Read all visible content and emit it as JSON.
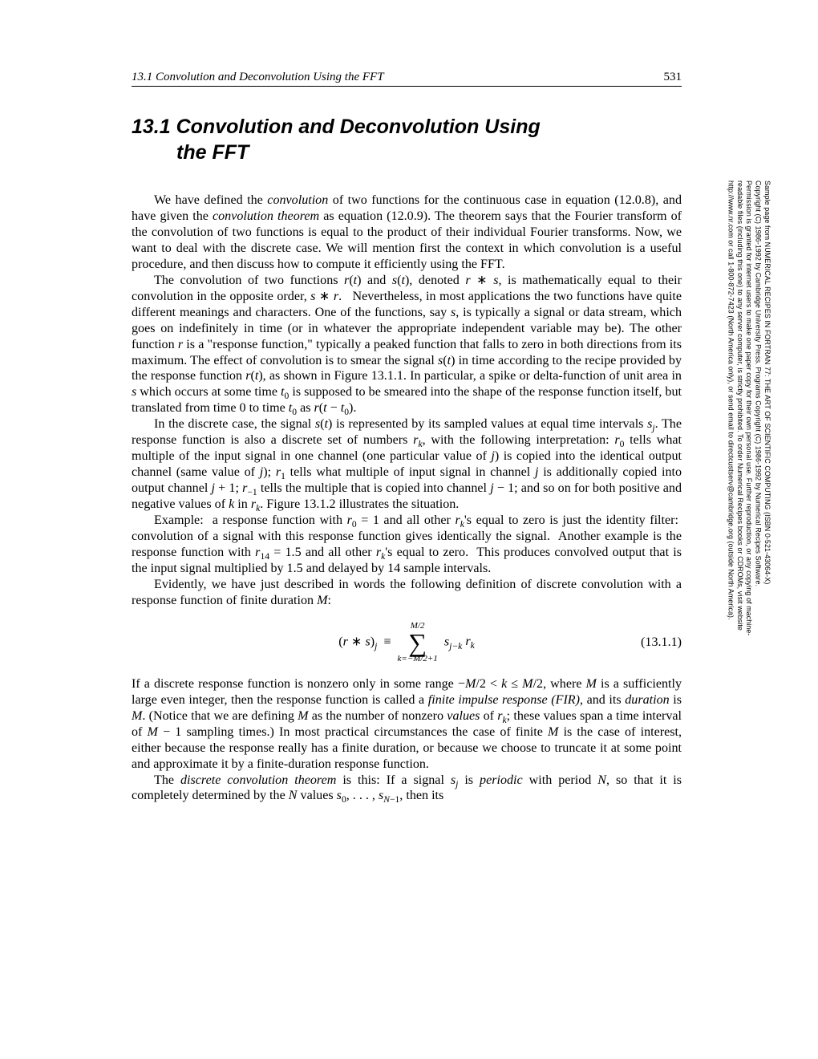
{
  "runningHead": {
    "title": "13.1 Convolution and Deconvolution Using the FFT",
    "page": "531"
  },
  "sectionTitle": {
    "line1": "13.1 Convolution and Deconvolution Using",
    "line2": "the FFT"
  },
  "paragraphs": {
    "p1": "We have defined the convolution of two functions for the continuous case in equation (12.0.8), and have given the convolution theorem as equation (12.0.9). The theorem says that the Fourier transform of the convolution of two functions is equal to the product of their individual Fourier transforms. Now, we want to deal with the discrete case. We will mention first the context in which convolution is a useful procedure, and then discuss how to compute it efficiently using the FFT.",
    "p7": "Example:  a response function with r₀ = 1 and all other rₖ's equal to zero is just the identity filter:  convolution of a signal with this response function gives identically the signal.  Another example is the response function with r₁₄ = 1.5 and all other rₖ's equal to zero.  This produces convolved output that is the input signal multiplied by 1.5 and delayed by 14 sample intervals.",
    "p8": "Evidently, we have just described in words the following definition of discrete convolution with a response function of finite duration M:"
  },
  "equation": {
    "number": "(13.1.1)"
  },
  "sidebar": {
    "line1": "Sample page from NUMERICAL RECIPES IN FORTRAN 77: THE ART OF SCIENTIFIC COMPUTING (ISBN 0-521-43064-X)",
    "line2": "Copyright (C) 1986-1992 by Cambridge University Press. Programs Copyright (C) 1986-1992 by Numerical Recipes Software.",
    "line3": "Permission is granted for internet users to make one paper copy for their own personal use. Further reproduction, or any copying of machine-",
    "line4": "readable files (including this one) to any server computer, is strictly prohibited. To order Numerical Recipes books or CDROMs, visit website",
    "line5": "http://www.nr.com or call 1-800-872-7423 (North America only), or send email to directcustserv@cambridge.org (outside North America)."
  }
}
